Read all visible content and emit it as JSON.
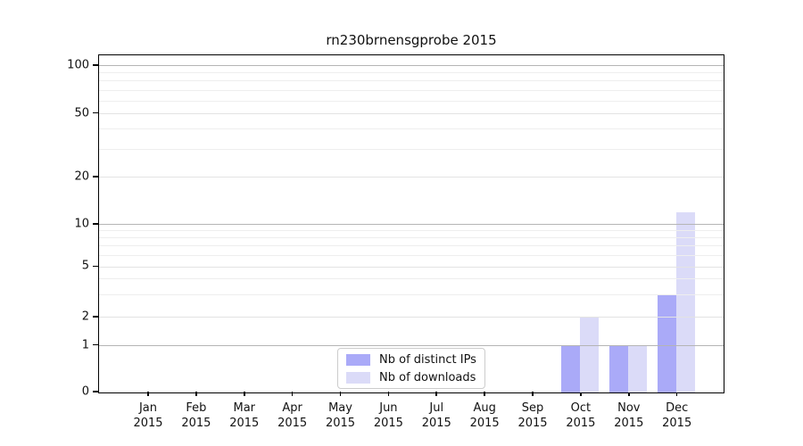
{
  "chart_data": {
    "type": "bar",
    "title": "rn230brnensgprobe 2015",
    "xlabel": "",
    "ylabel": "",
    "categories": [
      "Jan 2015",
      "Feb 2015",
      "Mar 2015",
      "Apr 2015",
      "May 2015",
      "Jun 2015",
      "Jul 2015",
      "Aug 2015",
      "Sep 2015",
      "Oct 2015",
      "Nov 2015",
      "Dec 2015"
    ],
    "series": [
      {
        "name": "Nb of distinct IPs",
        "color": "#aaaaf8",
        "values": [
          0,
          0,
          0,
          0,
          0,
          0,
          0,
          0,
          0,
          1,
          1,
          3
        ]
      },
      {
        "name": "Nb of downloads",
        "color": "#dbdbf8",
        "values": [
          0,
          0,
          0,
          0,
          0,
          0,
          0,
          0,
          0,
          2,
          1,
          12
        ]
      }
    ],
    "y_axis": {
      "scale": "symlog-like",
      "ticks": [
        0,
        1,
        2,
        5,
        10,
        20,
        50,
        100
      ],
      "tick_labels": [
        "0",
        "1",
        "2",
        "5",
        "10",
        "20",
        "50",
        "100"
      ],
      "major_grid_values": [
        1,
        10,
        100
      ],
      "labeled_minor_grid_values": [
        2,
        5,
        20,
        50
      ],
      "minor_grid_values": [
        3,
        4,
        6,
        7,
        8,
        9,
        30,
        40,
        60,
        70,
        80,
        90
      ],
      "range": [
        0,
        100
      ]
    },
    "legend": {
      "position": "inside-bottom-center",
      "entries": [
        "Nb of distinct IPs",
        "Nb of downloads"
      ]
    },
    "grid": "horizontal major+minor, drawn over bars",
    "colors": {
      "background": "#ffffff",
      "spine": "#000000",
      "major_grid": "#b5b5b5",
      "labeled_minor_grid": "#e3e3e3",
      "minor_grid": "#eeeeee",
      "text": "#111111"
    }
  }
}
